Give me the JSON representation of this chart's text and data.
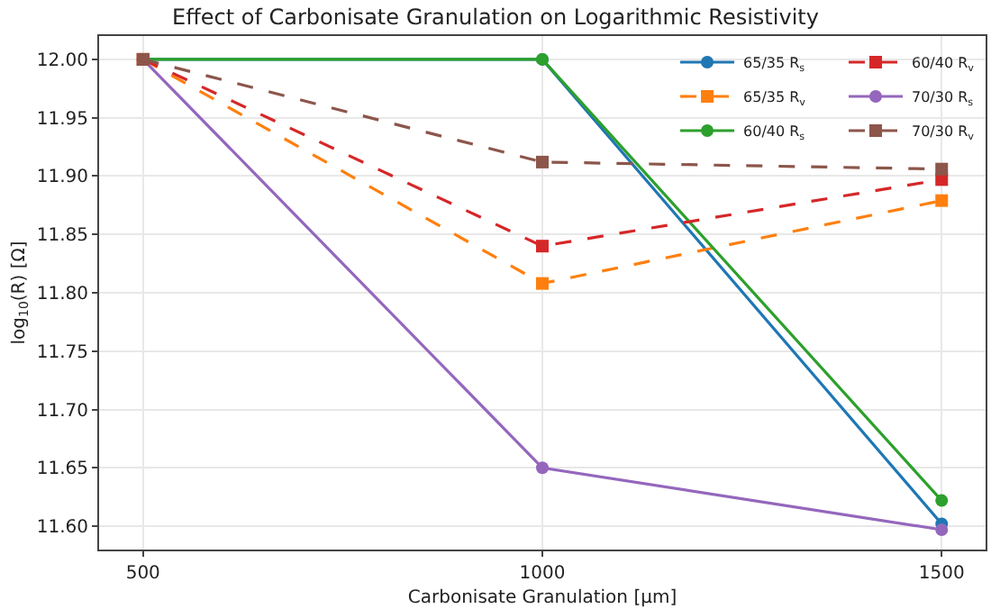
{
  "chart_data": {
    "type": "line",
    "title": "Effect of Carbonisate Granulation on Logarithmic Resistivity",
    "xlabel": "Carbonisate Granulation [μm]",
    "ylabel": "log$_{10}$(R) [Ω]",
    "x": [
      500,
      1000,
      1500
    ],
    "series": [
      {
        "name": "65/35 R$_{s}$",
        "color": "#1f77b4",
        "marker": "circle",
        "line_style": "solid",
        "values": [
          12.0,
          12.0,
          11.602
        ]
      },
      {
        "name": "65/35 R$_{v}$",
        "color": "#ff7f0e",
        "marker": "square",
        "line_style": "dashed",
        "values": [
          12.0,
          11.808,
          11.879
        ]
      },
      {
        "name": "60/40 R$_{s}$",
        "color": "#2ca02c",
        "marker": "circle",
        "line_style": "solid",
        "values": [
          12.0,
          12.0,
          11.622
        ]
      },
      {
        "name": "60/40 R$_{v}$",
        "color": "#d62728",
        "marker": "square",
        "line_style": "dashed",
        "values": [
          12.0,
          11.84,
          11.897
        ]
      },
      {
        "name": "70/30 R$_{s}$",
        "color": "#9467bd",
        "marker": "circle",
        "line_style": "solid",
        "values": [
          12.0,
          11.65,
          11.597
        ]
      },
      {
        "name": "70/30 R$_{v}$",
        "color": "#8c564b",
        "marker": "square",
        "line_style": "dashed",
        "values": [
          12.0,
          11.912,
          11.906
        ]
      }
    ],
    "xlim": [
      445,
      1555
    ],
    "xticks": [
      500,
      1000,
      1500
    ],
    "ylim": [
      11.58,
      12.02
    ],
    "yticks": [
      {
        "value": 11.6,
        "label": "11.60"
      },
      11.65,
      {
        "value": 11.7,
        "label": "11.70"
      },
      11.75,
      {
        "value": 11.8,
        "label": "11.80"
      },
      11.85,
      {
        "value": 11.9,
        "label": "11.90"
      },
      11.95,
      {
        "value": 12.0,
        "label": "12.00"
      }
    ],
    "grid": true,
    "legend": "top right"
  }
}
